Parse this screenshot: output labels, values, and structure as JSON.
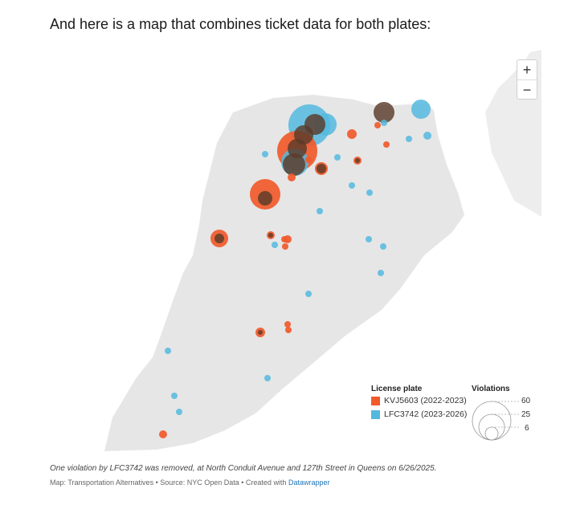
{
  "heading": "And here is a map that combines ticket data for both plates:",
  "zoom": {
    "in_label": "+",
    "out_label": "−"
  },
  "colors": {
    "land": "#e6e6e6",
    "kvj": "#f15a2b",
    "lfc": "#53b8de",
    "overlap": "#5a3a2a"
  },
  "legend": {
    "plate_title": "License plate",
    "plates": [
      {
        "label": "KVJ5603 (2022-2023)",
        "color": "#f15a2b"
      },
      {
        "label": "LFC3742 (2023-2026)",
        "color": "#53b8de"
      }
    ],
    "size_title": "Violations",
    "sizes": [
      "60",
      "25",
      "6"
    ]
  },
  "note": "One violation by LFC3742 was removed, at North Conduit Avenue and 127th Street in Queens on 6/26/2025.",
  "source": {
    "prefix": "Map: Transportation Alternatives • Source: NYC Open Data • Created with ",
    "link_label": "Datawrapper"
  }
}
